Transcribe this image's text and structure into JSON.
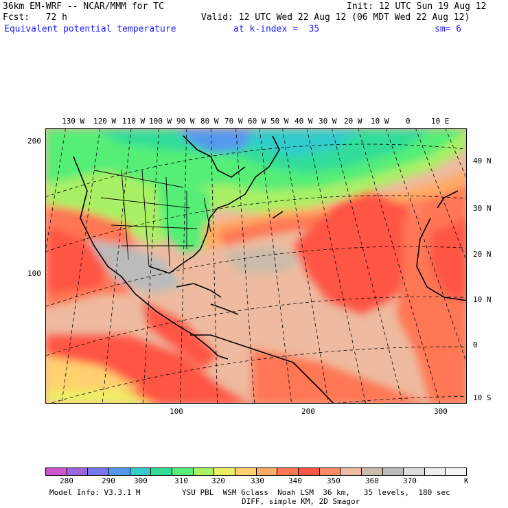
{
  "header": {
    "line1_left": "36km EM-WRF -- NCAR/MMM for TC",
    "line1_right": "Init: 12 UTC Sun 19 Aug 12",
    "line2_left": "Fcst:   72 h",
    "line2_right": "Valid: 12 UTC Wed 22 Aug 12 (06 MDT Wed 22 Aug 12)",
    "line3_left": "Equivalent potential temperature",
    "line3_mid": "at k-index =  35",
    "line3_right": "sm= 6"
  },
  "map": {
    "top_lon_labels": [
      "130 W",
      "120 W",
      "110 W",
      "100 W",
      "90 W",
      "80 W",
      "70 W",
      "60 W",
      "50 W",
      "40 W",
      "30 W",
      "20 W",
      "10 W",
      "0",
      "10 E"
    ],
    "right_lat_labels": [
      "40 N",
      "30 N",
      "20 N",
      "10 N",
      "0",
      "10 S"
    ],
    "left_grid_labels": [
      "200",
      "100"
    ],
    "bottom_grid_labels": [
      "100",
      "200",
      "300"
    ]
  },
  "colorbar": {
    "colors": [
      "#cc55cc",
      "#9966dd",
      "#7777ee",
      "#5599ee",
      "#33cccc",
      "#33dd99",
      "#55ee77",
      "#aaf066",
      "#eeee66",
      "#ffd070",
      "#ffaa66",
      "#ff7755",
      "#ff5544",
      "#ff8866",
      "#eebba0",
      "#ccbbaa",
      "#bbbbbb",
      "#dddddd",
      "#eeeeee",
      "#f6f6f6"
    ],
    "labels": [
      "280",
      "290",
      "300",
      "310",
      "320",
      "330",
      "340",
      "350",
      "360",
      "370"
    ],
    "unit": "K"
  },
  "footer": {
    "line1_left": "Model Info: V3.3.1 M",
    "line1_right": "YSU PBL  WSM 6class  Noah LSM  36 km,   35 levels,  180 sec",
    "line2": "DIFF, simple KM, 2D Smagor"
  }
}
